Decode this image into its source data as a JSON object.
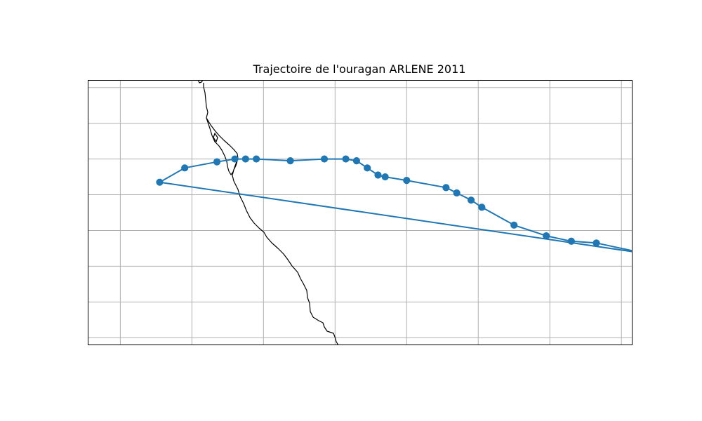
{
  "chart_data": {
    "type": "map",
    "title": "Trajectoire de l'ouragan ARLENE 2011",
    "series": [
      {
        "name": "",
        "color": "#1f77b4",
        "marker": "circle",
        "points": [
          {
            "lon": -97.0,
            "lat": 20.4
          },
          {
            "lon": -98.4,
            "lat": 20.7
          },
          {
            "lon": -99.1,
            "lat": 20.75
          },
          {
            "lon": -99.8,
            "lat": 20.9
          },
          {
            "lon": -100.7,
            "lat": 21.2
          },
          {
            "lon": -101.6,
            "lat": 21.7
          },
          {
            "lon": -101.9,
            "lat": 21.9
          },
          {
            "lon": -102.3,
            "lat": 22.1
          },
          {
            "lon": -102.6,
            "lat": 22.25
          },
          {
            "lon": -103.7,
            "lat": 22.45
          },
          {
            "lon": -104.3,
            "lat": 22.55
          },
          {
            "lon": -104.5,
            "lat": 22.6
          },
          {
            "lon": -104.8,
            "lat": 22.8
          },
          {
            "lon": -105.1,
            "lat": 23.0
          },
          {
            "lon": -105.4,
            "lat": 23.05
          },
          {
            "lon": -106.0,
            "lat": 23.05
          },
          {
            "lon": -106.95,
            "lat": 23.0
          },
          {
            "lon": -107.9,
            "lat": 23.05
          },
          {
            "lon": -108.2,
            "lat": 23.05
          },
          {
            "lon": -108.5,
            "lat": 23.05
          },
          {
            "lon": -109.0,
            "lat": 22.97
          },
          {
            "lon": -109.9,
            "lat": 22.8
          },
          {
            "lon": -110.6,
            "lat": 22.4
          },
          {
            "lon": -97.0,
            "lat": 20.4
          }
        ]
      }
    ],
    "coastline_color": "#000000",
    "grid": true,
    "xlim": [
      -112.6,
      -97.4
    ],
    "ylim": [
      17.85,
      25.25
    ],
    "x_gridlines": [
      -111.7,
      -109.7,
      -107.7,
      -105.7,
      -103.7,
      -101.7,
      -99.7,
      -97.7
    ],
    "y_gridlines": [
      18.05,
      19.05,
      20.05,
      21.05,
      22.05,
      23.05,
      24.05,
      25.05
    ]
  }
}
